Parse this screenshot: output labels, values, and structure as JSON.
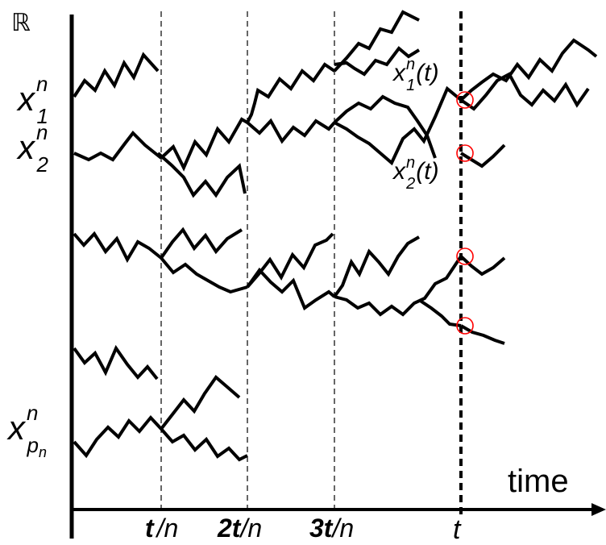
{
  "diagram": {
    "y_axis_symbol": "ℝ",
    "x_axis_label": "time",
    "tick_labels": [
      {
        "id": "t-over-n",
        "main": "t",
        "rest": "/n"
      },
      {
        "id": "2t-over-n",
        "main": "2t",
        "rest": "/n"
      },
      {
        "id": "3t-over-n",
        "main": "3t",
        "rest": "/n"
      },
      {
        "id": "t",
        "main": "t",
        "rest": ""
      }
    ],
    "start_labels": [
      {
        "id": "x1n",
        "base": "x",
        "sup": "n",
        "sub": "1"
      },
      {
        "id": "x2n",
        "base": "x",
        "sup": "n",
        "sub": "2"
      },
      {
        "id": "xpnn",
        "base": "x",
        "sup": "n",
        "sub": "p",
        "subsub": "n"
      }
    ],
    "time_labels": [
      {
        "id": "x1n-t",
        "base": "x",
        "sup": "n",
        "sub": "1",
        "arg": "(t)"
      },
      {
        "id": "x2n-t",
        "base": "x",
        "sup": "n",
        "sub": "2",
        "arg": "(t)"
      }
    ],
    "marker_color": "#ff0000",
    "line_color": "#000000"
  }
}
